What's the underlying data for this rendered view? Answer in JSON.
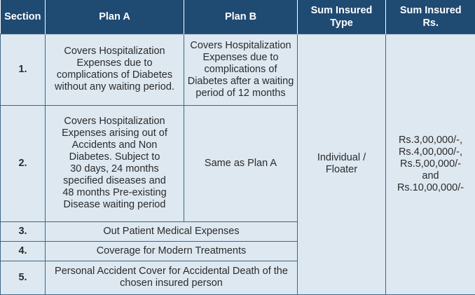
{
  "headers": {
    "section": "Section",
    "plan_a": "Plan A",
    "plan_b": "Plan B",
    "sum_insured_type_line1": "Sum Insured",
    "sum_insured_type_line2": "Type",
    "sum_insured_rs_line1": "Sum Insured",
    "sum_insured_rs_line2": "Rs."
  },
  "rows": [
    {
      "section": "1.",
      "plan_a": [
        "Covers Hospitalization",
        "Expenses due to",
        "complications of Diabetes",
        "without any waiting period."
      ],
      "plan_b": [
        "Covers Hospitalization",
        "Expenses due to",
        "complications of",
        "Diabetes after a waiting",
        "period of 12 months"
      ]
    },
    {
      "section": "2.",
      "plan_a": [
        "Covers Hospitalization",
        "Expenses arising out of",
        "Accidents and Non",
        "Diabetes. Subject to",
        "30 days, 24 months",
        "specified diseases and",
        "48 months Pre-existing",
        "Disease waiting period"
      ],
      "plan_b": "Same as Plan A"
    },
    {
      "section": "3.",
      "merged": "Out Patient Medical Expenses"
    },
    {
      "section": "4.",
      "merged": "Coverage for Modern Treatments"
    },
    {
      "section": "5.",
      "merged": [
        "Personal Accident Cover for Accidental Death of the",
        "chosen insured person"
      ]
    }
  ],
  "sum_insured_type": [
    "Individual /",
    "Floater"
  ],
  "sum_insured_amount": [
    "Rs.3,00,000/-,",
    "Rs.4,00,000/-,",
    "Rs.5,00,000/-",
    "and",
    "Rs.10,00,000/-"
  ],
  "colors": {
    "header_bg": "#1f4a72",
    "header_text": "#ffffff",
    "cell_bg": "#dde8f1",
    "border": "#3f6686",
    "text": "#2b2b2b"
  }
}
